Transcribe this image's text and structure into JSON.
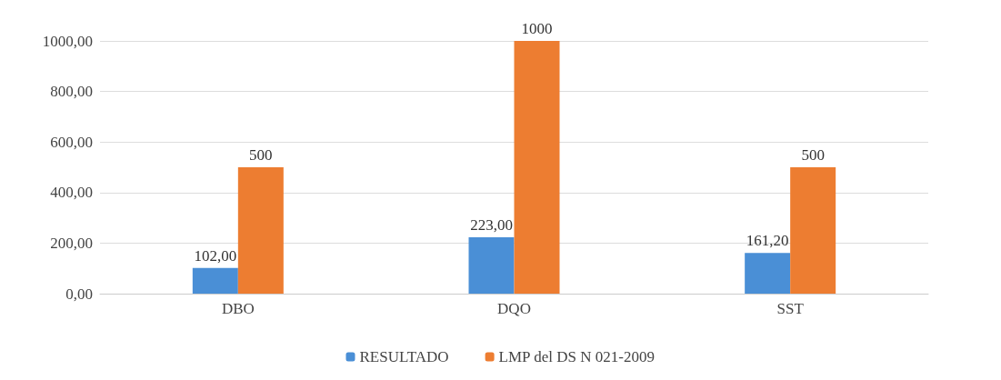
{
  "chart_data": {
    "type": "bar",
    "categories": [
      "DBO",
      "DQO",
      "SST"
    ],
    "series": [
      {
        "name": "RESULTADO",
        "color": "#4a8fd6",
        "values": [
          102,
          223,
          161.2
        ],
        "value_labels": [
          "102,00",
          "223,00",
          "161,20"
        ]
      },
      {
        "name": "LMP del DS N 021-2009",
        "color": "#ed7d31",
        "values": [
          500,
          1000,
          500
        ],
        "value_labels": [
          "500",
          "1000",
          "500"
        ]
      }
    ],
    "ylim": [
      0,
      1000
    ],
    "yticks": [
      {
        "value": 0,
        "label": "0,00"
      },
      {
        "value": 200,
        "label": "200,00"
      },
      {
        "value": 400,
        "label": "400,00"
      },
      {
        "value": 600,
        "label": "600,00"
      },
      {
        "value": 800,
        "label": "800,00"
      },
      {
        "value": 1000,
        "label": "1000,00"
      }
    ],
    "grid": "y",
    "legend": "bottom"
  }
}
